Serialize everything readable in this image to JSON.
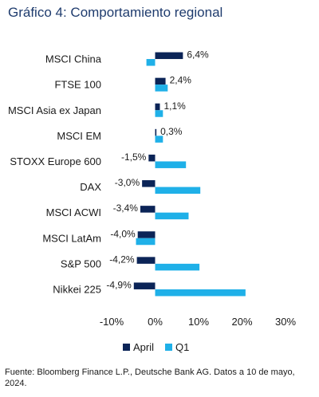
{
  "title": "Gráfico 4: Comportamiento regional",
  "source": "Fuente: Bloomberg Finance L.P., Deutsche Bank AG. Datos a 10 de mayo, 2024.",
  "colors": {
    "april": "#0b2457",
    "q1": "#1fb0e8",
    "title": "#1f3c6e"
  },
  "chart_data": {
    "type": "bar",
    "orientation": "horizontal",
    "categories": [
      "MSCI China",
      "FTSE 100",
      "MSCI Asia ex Japan",
      "MSCI EM",
      "STOXX Europe 600",
      "DAX",
      "MSCI ACWI",
      "MSCI LatAm",
      "S&P 500",
      "Nikkei 225"
    ],
    "series": [
      {
        "name": "April",
        "color": "#0b2457",
        "values": [
          6.4,
          2.4,
          1.1,
          0.3,
          -1.5,
          -3.0,
          -3.4,
          -4.0,
          -4.2,
          -4.9
        ],
        "labels": [
          "6,4%",
          "2,4%",
          "1,1%",
          "0,3%",
          "-1,5%",
          "-3,0%",
          "-3,4%",
          "-4,0%",
          "-4,2%",
          "-4,9%"
        ]
      },
      {
        "name": "Q1",
        "color": "#1fb0e8",
        "values": [
          -2.0,
          2.9,
          1.8,
          1.8,
          7.1,
          10.4,
          7.7,
          -4.4,
          10.2,
          20.8
        ]
      }
    ],
    "xlim": [
      -10,
      30
    ],
    "xticks": [
      -10,
      0,
      10,
      20,
      30
    ],
    "xtick_labels": [
      "-10%",
      "0%",
      "10%",
      "20%",
      "30%"
    ],
    "legend": "bottom",
    "grid": false
  }
}
